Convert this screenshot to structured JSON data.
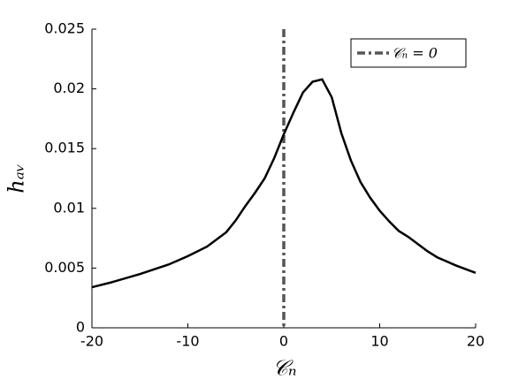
{
  "chart_data": {
    "type": "line",
    "xlabel": "𝒞ₙ",
    "ylabel": "hₐᵥ",
    "x": [
      -20,
      -18,
      -15,
      -12,
      -10,
      -8,
      -6,
      -5,
      -4,
      -3,
      -2,
      -1,
      0,
      1,
      2,
      3,
      4,
      5,
      6,
      7,
      8,
      9,
      10,
      11,
      12,
      13,
      14,
      15,
      16,
      18,
      20
    ],
    "series": [
      {
        "color": "#000000",
        "values": [
          0.0034,
          0.0038,
          0.0045,
          0.0053,
          0.006,
          0.0068,
          0.008,
          0.009,
          0.0102,
          0.0113,
          0.0125,
          0.0142,
          0.0162,
          0.018,
          0.0197,
          0.0206,
          0.0208,
          0.0193,
          0.0163,
          0.014,
          0.0122,
          0.0109,
          0.0098,
          0.0089,
          0.0081,
          0.0076,
          0.007,
          0.0064,
          0.0059,
          0.0052,
          0.0046
        ]
      }
    ],
    "reference_line": {
      "name": "𝒞ₙ = 0",
      "x": 0,
      "color": "#555555"
    },
    "xlim": [
      -20,
      20
    ],
    "xticks": [
      -20,
      -10,
      0,
      10,
      20
    ],
    "ylim": [
      0,
      0.025
    ],
    "yticks": [
      0,
      0.005,
      0.01,
      0.015,
      0.02,
      0.025
    ],
    "legend": "upper right"
  }
}
